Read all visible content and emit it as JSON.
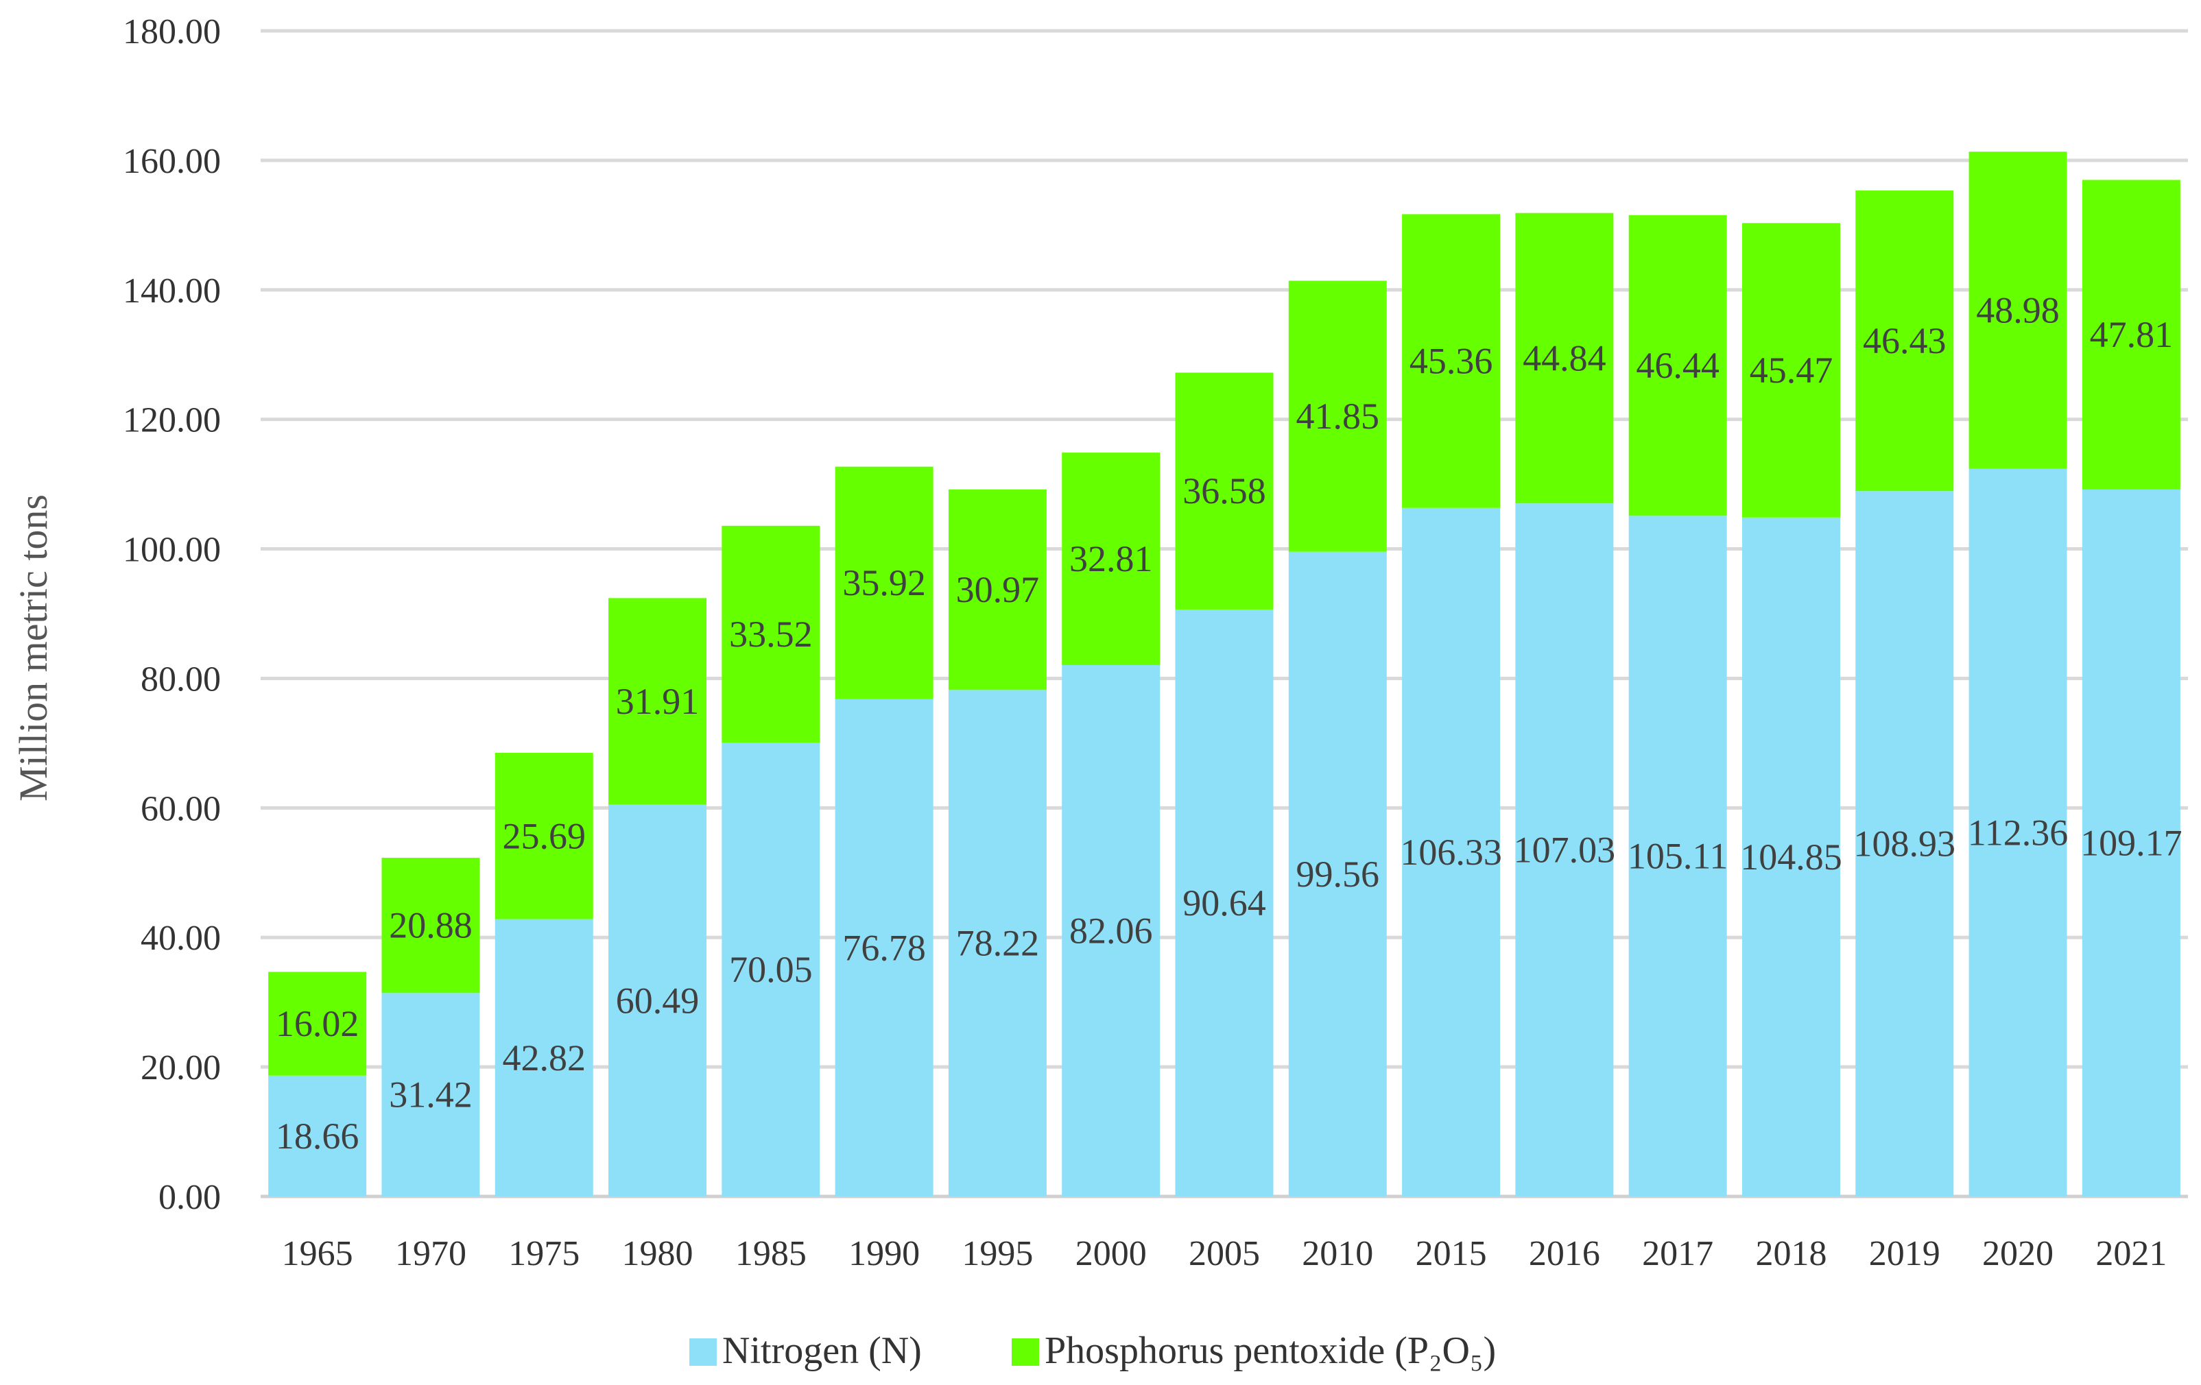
{
  "chart_data": {
    "type": "bar",
    "stacked": true,
    "title": "",
    "xlabel": "",
    "ylabel": "Million metric tons",
    "ylim": [
      0,
      180
    ],
    "yticks": [
      "0.00",
      "20.00",
      "40.00",
      "60.00",
      "80.00",
      "100.00",
      "120.00",
      "140.00",
      "160.00",
      "180.00"
    ],
    "grid": true,
    "legend_position": "bottom-center",
    "categories": [
      "1965",
      "1970",
      "1975",
      "1980",
      "1985",
      "1990",
      "1995",
      "2000",
      "2005",
      "2010",
      "2015",
      "2016",
      "2017",
      "2018",
      "2019",
      "2020",
      "2021"
    ],
    "series": [
      {
        "name": "Nitrogen (N)",
        "color": "#8ee0f8",
        "values": [
          18.66,
          31.42,
          42.82,
          60.49,
          70.05,
          76.78,
          78.22,
          82.06,
          90.64,
          99.56,
          106.33,
          107.03,
          105.11,
          104.85,
          108.93,
          112.36,
          109.17
        ],
        "labels": [
          "18.66",
          "31.42",
          "42.82",
          "60.49",
          "70.05",
          "76.78",
          "78.22",
          "82.06",
          "90.64",
          "99.56",
          "106.33",
          "107.03",
          "105.11",
          "104.85",
          "108.93",
          "112.36",
          "109.17"
        ]
      },
      {
        "name": "Phosphorus pentoxide (P₂O₅)",
        "color": "#66ff00",
        "values": [
          16.02,
          20.88,
          25.69,
          31.91,
          33.52,
          35.92,
          30.97,
          32.81,
          36.58,
          41.85,
          45.36,
          44.84,
          46.44,
          45.47,
          46.43,
          48.98,
          47.81
        ],
        "labels": [
          "16.02",
          "20.88",
          "25.69",
          "31.91",
          "33.52",
          "35.92",
          "30.97",
          "32.81",
          "36.58",
          "41.85",
          "45.36",
          "44.84",
          "46.44",
          "45.47",
          "46.43",
          "48.98",
          "47.81"
        ]
      }
    ]
  }
}
